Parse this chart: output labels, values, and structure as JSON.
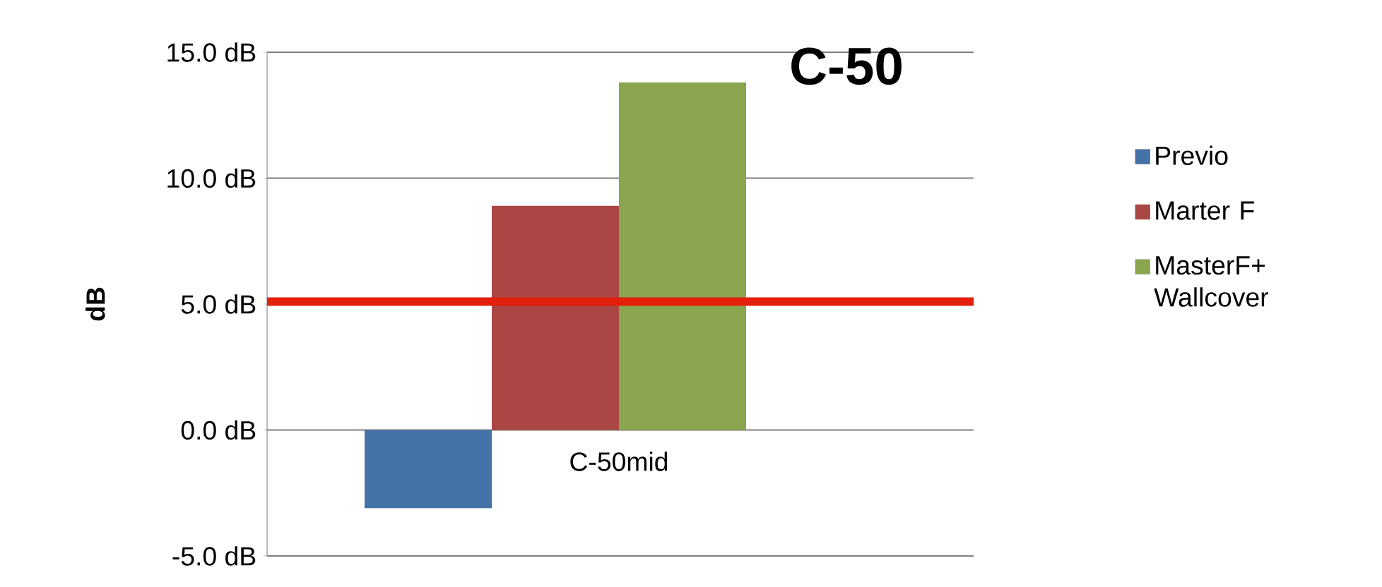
{
  "chart_data": {
    "type": "bar",
    "title": "C-50",
    "ylabel": "dB",
    "categories": [
      "C-50mid"
    ],
    "series": [
      {
        "name": "Previo",
        "color": "#4572a7",
        "values": [
          -3.1
        ]
      },
      {
        "name": "Marter F",
        "color": "#aa4643",
        "values": [
          8.9
        ]
      },
      {
        "name": "MasterF+ Wallcover",
        "color": "#89a54e",
        "values": [
          13.8
        ]
      }
    ],
    "ylim": [
      -5,
      15
    ],
    "yticks": [
      {
        "value": -5,
        "label": "-5.0 dB"
      },
      {
        "value": 0,
        "label": "0.0 dB"
      },
      {
        "value": 5,
        "label": "5.0 dB"
      },
      {
        "value": 10,
        "label": "10.0 dB"
      },
      {
        "value": 15,
        "label": "15.0 dB"
      }
    ],
    "grid": "y",
    "legend": "right",
    "ref_lines": [
      {
        "axis": "y",
        "value": 5.1,
        "color": "#e2200c"
      }
    ]
  }
}
